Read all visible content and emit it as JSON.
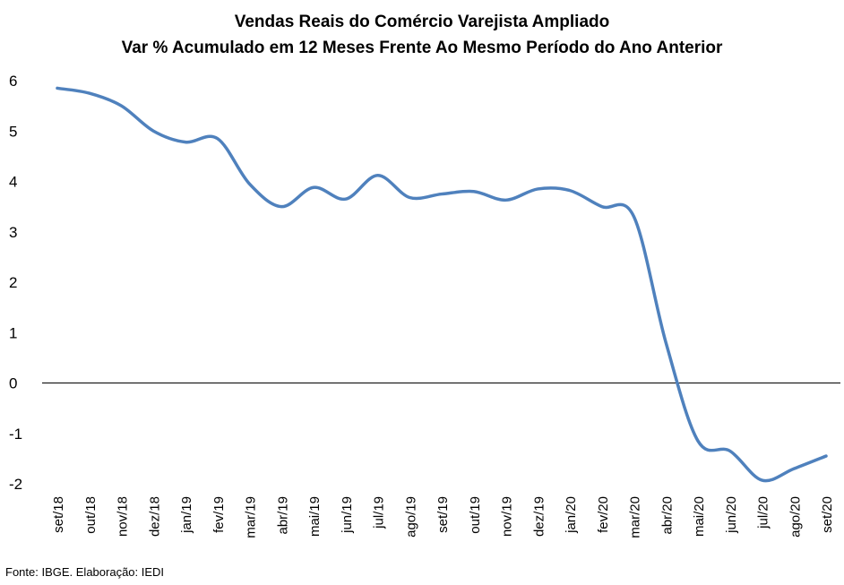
{
  "chart_data": {
    "type": "line",
    "title": "Vendas Reais do Comércio Varejista Ampliado",
    "subtitle": "Var % Acumulado em 12 Meses Frente Ao Mesmo Período do Ano Anterior",
    "categories": [
      "set/18",
      "out/18",
      "nov/18",
      "dez/18",
      "jan/19",
      "fev/19",
      "mar/19",
      "abr/19",
      "mai/19",
      "jun/19",
      "jul/19",
      "ago/19",
      "set/19",
      "out/19",
      "nov/19",
      "dez/19",
      "jan/20",
      "fev/20",
      "mar/20",
      "abr/20",
      "mai/20",
      "jun/20",
      "jul/20",
      "ago/20",
      "set/20"
    ],
    "series": [
      {
        "values": [
          5.85,
          5.75,
          5.5,
          5.0,
          4.78,
          4.85,
          3.95,
          3.5,
          3.88,
          3.65,
          4.12,
          3.68,
          3.75,
          3.8,
          3.63,
          3.85,
          3.82,
          3.5,
          3.3,
          0.8,
          -1.15,
          -1.35,
          -1.93,
          -1.7,
          -1.45
        ],
        "color": "#4f81bd"
      }
    ],
    "xlabel": "",
    "ylabel": "",
    "ylim": [
      -2,
      6
    ],
    "yticks": [
      6,
      5,
      4,
      3,
      2,
      1,
      0,
      -1,
      -2
    ],
    "grid": false,
    "legend": "none"
  },
  "source_note": "Fonte: IBGE. Elaboração: IEDI"
}
